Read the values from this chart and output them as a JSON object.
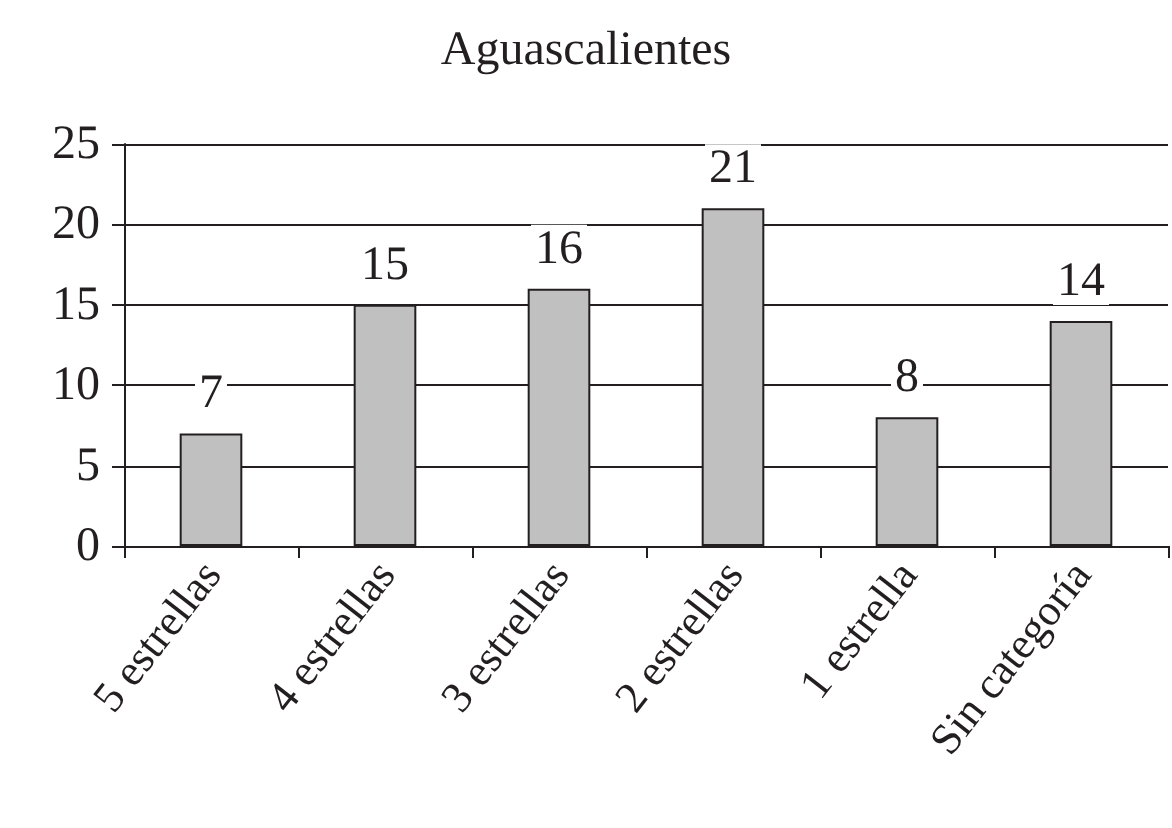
{
  "chart_data": {
    "type": "bar",
    "title": "Aguascalientes",
    "categories": [
      "5 estrellas",
      "4 estrellas",
      "3 estrellas",
      "2 estrellas",
      "1 estrella",
      "Sin categoría"
    ],
    "values": [
      7,
      15,
      16,
      21,
      8,
      14
    ],
    "color": "#c0c0c0",
    "ylim": [
      0,
      25
    ],
    "yticks": [
      0,
      5,
      10,
      15,
      20,
      25
    ],
    "grid": "y",
    "data_labels": true
  }
}
